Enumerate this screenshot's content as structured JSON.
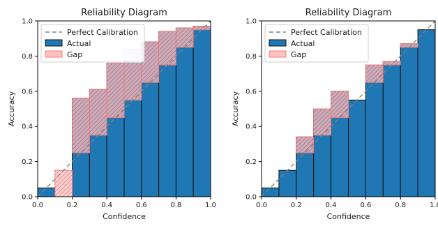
{
  "colors": {
    "actual": "#1f77b4",
    "gap_fill": "#ffc0c0",
    "gap_stroke": "#f08080",
    "gap_hatch": "#c04040",
    "diagonal": "#808080"
  },
  "chart_data": [
    {
      "type": "bar",
      "title": "Reliability Diagram",
      "xlabel": "Confidence",
      "ylabel": "Accuracy",
      "xlim": [
        0,
        1
      ],
      "ylim": [
        0,
        1
      ],
      "xticks": [
        "0.0",
        "0.2",
        "0.4",
        "0.6",
        "0.8",
        "1.0"
      ],
      "yticks": [
        "0.0",
        "0.2",
        "0.4",
        "0.6",
        "0.8",
        "1.0"
      ],
      "legend_position": "top-left",
      "legend": [
        "Perfect Calibration",
        "Actual",
        "Gap"
      ],
      "bin_edges": [
        0.0,
        0.1,
        0.2,
        0.3,
        0.4,
        0.5,
        0.6,
        0.7,
        0.8,
        0.9,
        1.0
      ],
      "series": [
        {
          "name": "Actual",
          "values": [
            0.05,
            0.0,
            0.56,
            0.61,
            0.76,
            0.76,
            0.88,
            0.94,
            0.96,
            0.97
          ]
        },
        {
          "name": "Gap",
          "values": [
            0.05,
            0.15,
            0.25,
            0.35,
            0.45,
            0.55,
            0.65,
            0.75,
            0.85,
            0.95
          ]
        }
      ],
      "extra_gap_box": {
        "x0": 0.5,
        "x1": 0.6,
        "y0": 0.76,
        "y1": 0.84
      }
    },
    {
      "type": "bar",
      "title": "Reliability Diagram",
      "xlabel": "Confidence",
      "ylabel": "Accuracy",
      "xlim": [
        0,
        1
      ],
      "ylim": [
        0,
        1
      ],
      "xticks": [
        "0.0",
        "0.2",
        "0.4",
        "0.6",
        "0.8",
        "1.0"
      ],
      "yticks": [
        "0.0",
        "0.2",
        "0.4",
        "0.6",
        "0.8",
        "1.0"
      ],
      "legend_position": "top-left",
      "legend": [
        "Perfect Calibration",
        "Actual",
        "Gap"
      ],
      "bin_edges": [
        0.0,
        0.1,
        0.2,
        0.3,
        0.4,
        0.5,
        0.6,
        0.7,
        0.8,
        0.9,
        1.0
      ],
      "series": [
        {
          "name": "Actual",
          "values": [
            0.05,
            0.15,
            0.34,
            0.5,
            0.6,
            0.55,
            0.75,
            0.77,
            0.87,
            0.95
          ]
        },
        {
          "name": "Gap",
          "values": [
            0.05,
            0.15,
            0.25,
            0.35,
            0.45,
            0.55,
            0.65,
            0.75,
            0.85,
            0.95
          ]
        }
      ]
    }
  ]
}
